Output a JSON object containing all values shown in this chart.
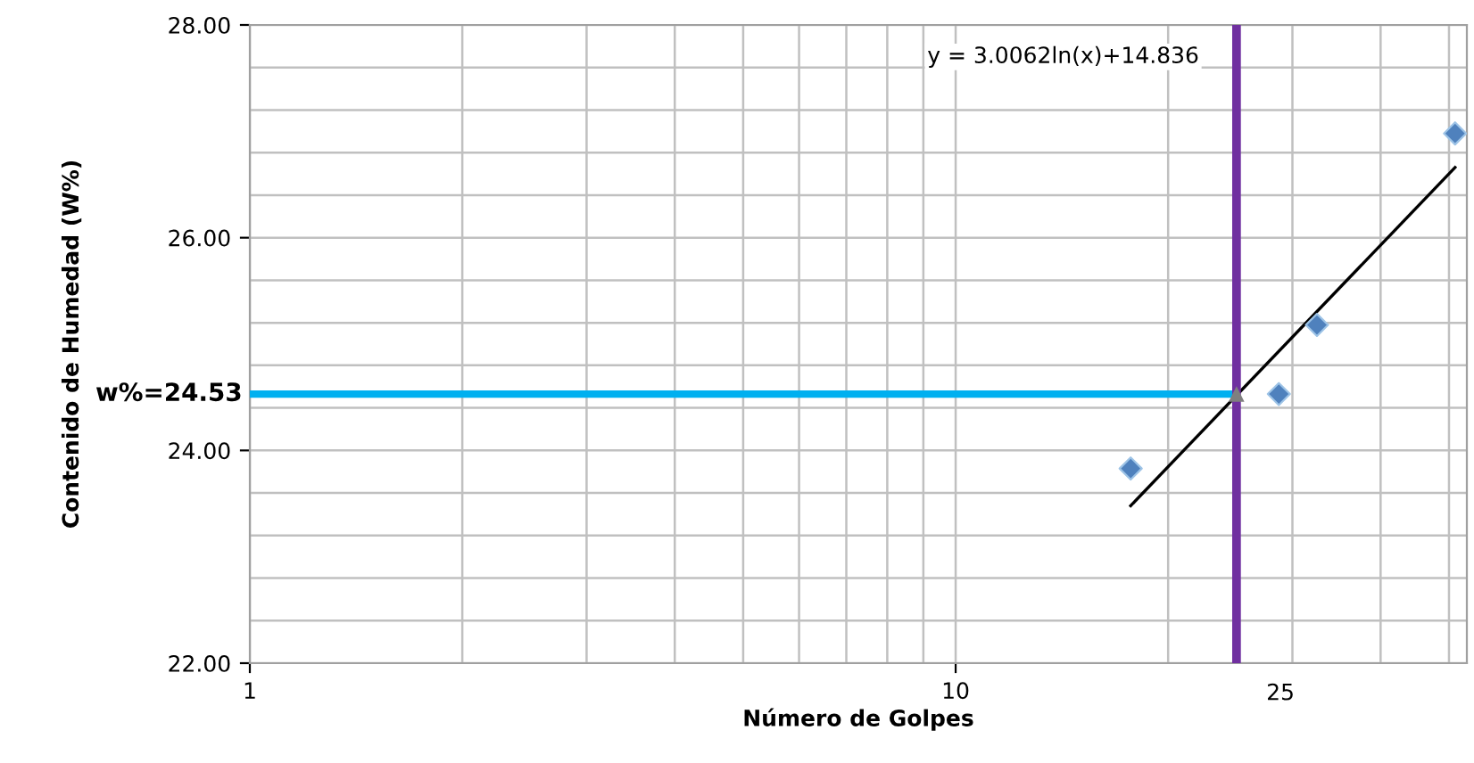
{
  "chart_data": {
    "type": "scatter",
    "xlabel": "Número de Golpes",
    "ylabel": "Contenido de Humedad (W%)",
    "log": "x",
    "grid": true,
    "marker": "diamond",
    "xlim": [
      1,
      53
    ],
    "xticks": [
      1,
      {
        "value": 2,
        "label": null
      },
      {
        "value": 3,
        "label": null
      },
      {
        "value": 4,
        "label": null
      },
      {
        "value": 5,
        "label": null
      },
      {
        "value": 6,
        "label": null
      },
      {
        "value": 7,
        "label": null
      },
      {
        "value": 8,
        "label": null
      },
      {
        "value": 9,
        "label": null
      },
      10,
      {
        "value": 20,
        "label": null
      },
      {
        "value": 30,
        "label": null
      },
      {
        "value": 40,
        "label": null
      },
      {
        "value": 50,
        "label": null
      }
    ],
    "ylim": [
      22,
      28
    ],
    "yticks": [
      {
        "value": 22,
        "label": "22.00"
      },
      {
        "value": 22.4,
        "label": null
      },
      {
        "value": 22.8,
        "label": null
      },
      {
        "value": 23.2,
        "label": null
      },
      {
        "value": 23.6,
        "label": null
      },
      {
        "value": 24,
        "label": "24.00"
      },
      {
        "value": 24.4,
        "label": null
      },
      {
        "value": 24.8,
        "label": null
      },
      {
        "value": 25.2,
        "label": null
      },
      {
        "value": 25.6,
        "label": null
      },
      {
        "value": 26,
        "label": "26.00"
      },
      {
        "value": 26.4,
        "label": null
      },
      {
        "value": 26.8,
        "label": null
      },
      {
        "value": 27.2,
        "label": null
      },
      {
        "value": 27.6,
        "label": null
      },
      {
        "value": 28,
        "label": "28.00"
      }
    ],
    "series": [
      {
        "type": "line",
        "color": "#00b0f0",
        "x": [
          1,
          25
        ],
        "values": [
          24.53,
          24.53
        ],
        "marker": "none"
      },
      {
        "type": "line",
        "color": "#000000",
        "x": [
          17.7,
          51
        ],
        "values": [
          23.48,
          26.66
        ],
        "marker": "none"
      },
      {
        "color": "#4f81bd",
        "x": [
          17.7,
          28.7,
          32.5,
          51
        ],
        "values": [
          23.83,
          24.53,
          25.18,
          26.98
        ]
      },
      {
        "color": "#7f7f7f",
        "x": [
          25
        ],
        "values": [
          24.53
        ],
        "marker": "triangle"
      }
    ],
    "ref_lines": [
      {
        "axis": "x",
        "value": 25,
        "label": "25",
        "color": "#7030a0"
      }
    ],
    "annotations": [
      "y = 3.0062ln(x)+14.836",
      {
        "text": "w%=24.53",
        "x": 1,
        "y": 24.53
      }
    ]
  }
}
